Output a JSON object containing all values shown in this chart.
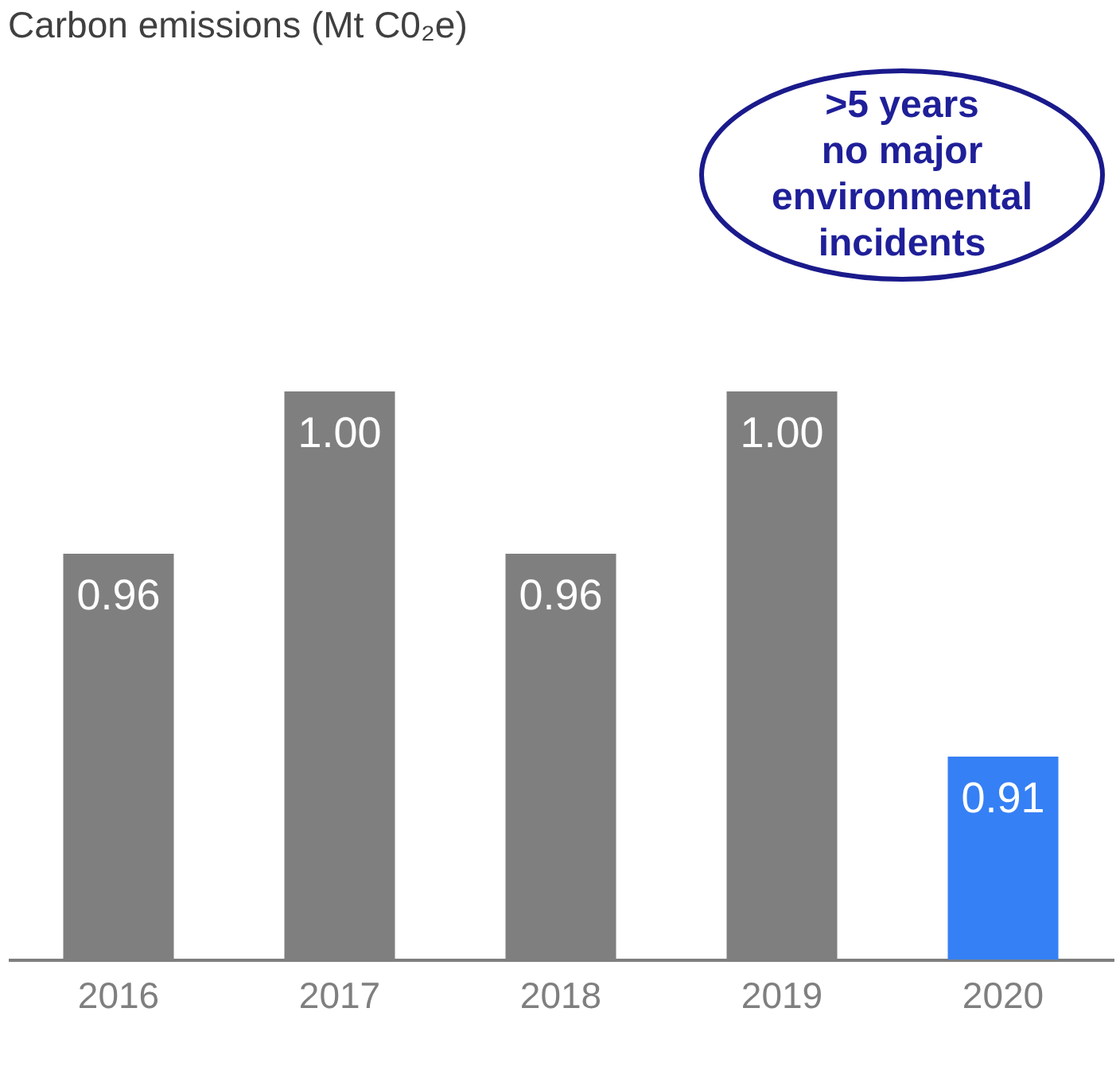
{
  "chart_data": {
    "type": "bar",
    "title": "Carbon emissions (Mt C0₂e)",
    "categories": [
      "2016",
      "2017",
      "2018",
      "2019",
      "2020"
    ],
    "values": [
      0.96,
      1.0,
      0.96,
      1.0,
      0.91
    ],
    "colors": [
      "#7f7f7f",
      "#7f7f7f",
      "#7f7f7f",
      "#7f7f7f",
      "#3580f5"
    ],
    "value_labels": [
      "0.96",
      "1.00",
      "0.96",
      "1.00",
      "0.91"
    ],
    "ylim": [
      0.86,
      1.0
    ],
    "tick_labels": "x",
    "grid": false,
    "annotations": [
      ">5 years\nno major\nenvironmental\nincidents"
    ]
  }
}
